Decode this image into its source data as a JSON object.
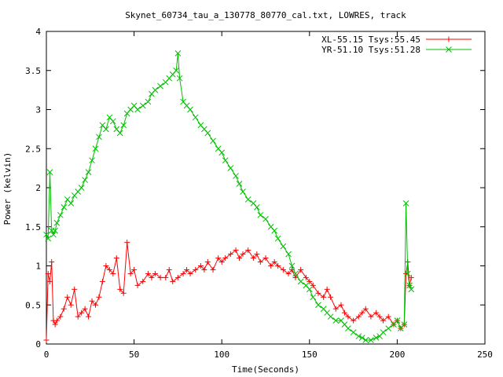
{
  "chart_data": {
    "type": "line",
    "title": "Skynet_60734_tau_a_130778_80770_cal.txt, LOWRES, track",
    "xlabel": "Time(Seconds)",
    "ylabel": "Power (kelvin)",
    "xlim": [
      0,
      250
    ],
    "ylim": [
      0,
      4
    ],
    "xticks": [
      0,
      50,
      100,
      150,
      200,
      250
    ],
    "yticks": [
      0,
      0.5,
      1,
      1.5,
      2,
      2.5,
      3,
      3.5,
      4
    ],
    "xtick_labels": [
      "0",
      "50",
      "100",
      "150",
      "200",
      "250"
    ],
    "ytick_labels": [
      "0",
      "0.5",
      "1",
      "1.5",
      "2",
      "2.5",
      "3",
      "3.5",
      "4"
    ],
    "grid": false,
    "legend_position": "top-right",
    "series": [
      {
        "name": "XL-55.15 Tsys:55.45",
        "color": "#ff0000",
        "marker": "plus",
        "x": [
          0,
          1,
          2,
          3,
          4,
          5,
          6,
          8,
          10,
          12,
          14,
          16,
          18,
          20,
          22,
          24,
          26,
          28,
          30,
          32,
          34,
          36,
          38,
          40,
          42,
          44,
          46,
          48,
          50,
          52,
          55,
          58,
          60,
          62,
          65,
          68,
          70,
          72,
          75,
          78,
          80,
          82,
          85,
          88,
          90,
          92,
          95,
          98,
          100,
          102,
          105,
          108,
          110,
          112,
          115,
          118,
          120,
          122,
          125,
          128,
          130,
          132,
          135,
          138,
          140,
          142,
          145,
          148,
          150,
          152,
          155,
          158,
          160,
          162,
          165,
          168,
          170,
          172,
          175,
          178,
          180,
          182,
          185,
          188,
          190,
          192,
          195,
          198,
          200,
          202,
          204,
          205,
          206,
          207,
          208
        ],
        "values": [
          0.05,
          0.9,
          0.8,
          1.05,
          0.3,
          0.25,
          0.3,
          0.35,
          0.45,
          0.6,
          0.5,
          0.7,
          0.35,
          0.4,
          0.45,
          0.35,
          0.55,
          0.5,
          0.6,
          0.8,
          1.0,
          0.95,
          0.9,
          1.1,
          0.7,
          0.65,
          1.3,
          0.9,
          0.95,
          0.75,
          0.8,
          0.9,
          0.85,
          0.9,
          0.85,
          0.85,
          0.95,
          0.8,
          0.85,
          0.9,
          0.95,
          0.9,
          0.95,
          1.0,
          0.95,
          1.05,
          0.95,
          1.1,
          1.05,
          1.1,
          1.15,
          1.2,
          1.1,
          1.15,
          1.2,
          1.1,
          1.15,
          1.05,
          1.1,
          1.0,
          1.05,
          1.0,
          0.95,
          0.9,
          0.95,
          0.85,
          0.95,
          0.85,
          0.8,
          0.75,
          0.65,
          0.6,
          0.7,
          0.6,
          0.45,
          0.5,
          0.4,
          0.35,
          0.3,
          0.35,
          0.4,
          0.45,
          0.35,
          0.4,
          0.35,
          0.3,
          0.35,
          0.25,
          0.3,
          0.2,
          0.25,
          0.9,
          1.05,
          0.75,
          0.85
        ]
      },
      {
        "name": "YR-51.10 Tsys:51.28",
        "color": "#00c000",
        "marker": "cross",
        "x": [
          0,
          1,
          2,
          3,
          4,
          5,
          6,
          8,
          10,
          12,
          14,
          16,
          18,
          20,
          22,
          24,
          26,
          28,
          30,
          32,
          34,
          36,
          38,
          40,
          42,
          44,
          46,
          48,
          50,
          52,
          55,
          58,
          60,
          62,
          65,
          68,
          70,
          72,
          74,
          75,
          76,
          78,
          80,
          82,
          85,
          88,
          90,
          92,
          95,
          98,
          100,
          102,
          105,
          108,
          110,
          112,
          115,
          118,
          120,
          122,
          125,
          128,
          130,
          132,
          135,
          138,
          140,
          142,
          145,
          148,
          150,
          152,
          155,
          158,
          160,
          162,
          165,
          168,
          170,
          172,
          175,
          178,
          180,
          182,
          185,
          188,
          190,
          192,
          195,
          198,
          200,
          202,
          204,
          205,
          206,
          207,
          208
        ],
        "values": [
          1.4,
          1.35,
          2.2,
          1.45,
          1.4,
          1.45,
          1.55,
          1.65,
          1.75,
          1.85,
          1.8,
          1.9,
          1.95,
          2.0,
          2.1,
          2.2,
          2.35,
          2.5,
          2.65,
          2.8,
          2.75,
          2.9,
          2.85,
          2.75,
          2.7,
          2.8,
          2.95,
          3.0,
          3.05,
          3.0,
          3.05,
          3.1,
          3.2,
          3.25,
          3.3,
          3.35,
          3.4,
          3.45,
          3.5,
          3.72,
          3.4,
          3.1,
          3.05,
          3.0,
          2.9,
          2.8,
          2.75,
          2.7,
          2.6,
          2.5,
          2.45,
          2.35,
          2.25,
          2.15,
          2.05,
          1.95,
          1.85,
          1.8,
          1.75,
          1.65,
          1.6,
          1.5,
          1.45,
          1.35,
          1.25,
          1.15,
          1.0,
          0.9,
          0.8,
          0.75,
          0.7,
          0.6,
          0.5,
          0.45,
          0.4,
          0.35,
          0.3,
          0.3,
          0.25,
          0.2,
          0.15,
          0.1,
          0.08,
          0.05,
          0.05,
          0.08,
          0.1,
          0.15,
          0.2,
          0.25,
          0.3,
          0.2,
          0.25,
          1.8,
          0.9,
          0.75,
          0.7
        ]
      }
    ]
  }
}
